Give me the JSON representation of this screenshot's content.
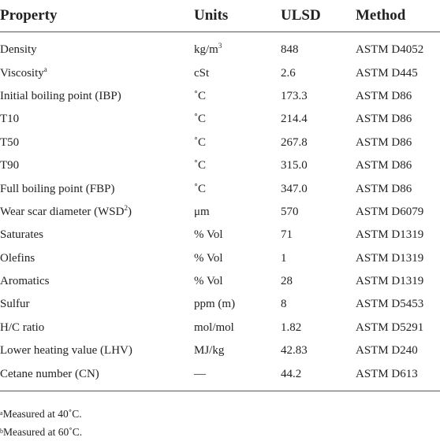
{
  "table": {
    "headers": [
      "Property",
      "Units",
      "ULSD",
      "Method"
    ],
    "rows": [
      {
        "property": "Density",
        "property_sup": "",
        "units": "kg/m",
        "units_sup": "3",
        "ulsd": "848",
        "method": "ASTM D4052"
      },
      {
        "property": "Viscosity",
        "property_sup": "a",
        "units": "cSt",
        "units_sup": "",
        "ulsd": "2.6",
        "method": "ASTM D445"
      },
      {
        "property": "Initial boiling point (IBP)",
        "property_sup": "",
        "units": "˚C",
        "units_sup": "",
        "ulsd": "173.3",
        "method": "ASTM D86"
      },
      {
        "property": "T10",
        "property_sup": "",
        "units": "˚C",
        "units_sup": "",
        "ulsd": "214.4",
        "method": "ASTM D86"
      },
      {
        "property": "T50",
        "property_sup": "",
        "units": "˚C",
        "units_sup": "",
        "ulsd": "267.8",
        "method": "ASTM D86"
      },
      {
        "property": "T90",
        "property_sup": "",
        "units": "˚C",
        "units_sup": "",
        "ulsd": "315.0",
        "method": "ASTM D86"
      },
      {
        "property": "Full boiling point (FBP)",
        "property_sup": "",
        "units": "˚C",
        "units_sup": "",
        "ulsd": "347.0",
        "method": "ASTM D86"
      },
      {
        "property": "Wear scar diameter (WSD",
        "property_sup": "2",
        "property_after": ")",
        "units": "μm",
        "units_sup": "",
        "ulsd": "570",
        "method": "ASTM D6079"
      },
      {
        "property": "Saturates",
        "property_sup": "",
        "units": "% Vol",
        "units_sup": "",
        "ulsd": "71",
        "method": "ASTM D1319"
      },
      {
        "property": "Olefins",
        "property_sup": "",
        "units": "% Vol",
        "units_sup": "",
        "ulsd": "1",
        "method": "ASTM D1319"
      },
      {
        "property": "Aromatics",
        "property_sup": "",
        "units": "% Vol",
        "units_sup": "",
        "ulsd": "28",
        "method": "ASTM D1319"
      },
      {
        "property": "Sulfur",
        "property_sup": "",
        "units": "ppm (m)",
        "units_sup": "",
        "ulsd": "8",
        "method": "ASTM D5453"
      },
      {
        "property": "H/C ratio",
        "property_sup": "",
        "units": "mol/mol",
        "units_sup": "",
        "ulsd": "1.82",
        "method": "ASTM D5291"
      },
      {
        "property": "Lower heating value (LHV)",
        "property_sup": "",
        "units": "MJ/kg",
        "units_sup": "",
        "ulsd": "42.83",
        "method": "ASTM D240"
      },
      {
        "property": "Cetane number (CN)",
        "property_sup": "",
        "units": "—",
        "units_sup": "",
        "ulsd": "44.2",
        "method": "ASTM D613"
      }
    ]
  },
  "footnotes": [
    {
      "marker": "a",
      "text": "Measured at 40˚C."
    },
    {
      "marker": "b",
      "text": "Measured at 60˚C."
    }
  ]
}
